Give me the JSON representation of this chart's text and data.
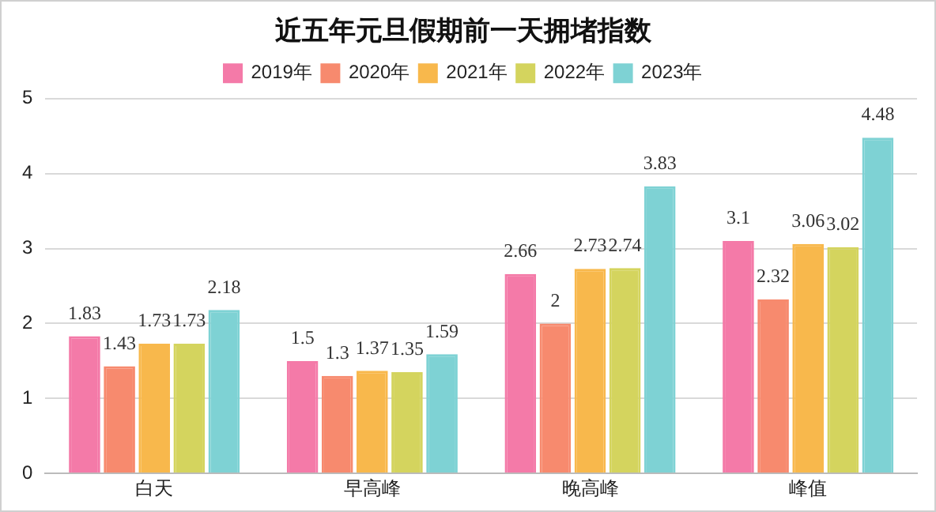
{
  "chart_data": {
    "type": "bar",
    "title": "近五年元旦假期前一天拥堵指数",
    "categories": [
      "白天",
      "早高峰",
      "晚高峰",
      "峰值"
    ],
    "series": [
      {
        "name": "2019年",
        "color": "#f47aa8",
        "values": [
          1.83,
          1.5,
          2.66,
          3.1
        ]
      },
      {
        "name": "2020年",
        "color": "#f78a6e",
        "values": [
          1.43,
          1.3,
          2,
          2.32
        ]
      },
      {
        "name": "2021年",
        "color": "#f8b84c",
        "values": [
          1.73,
          1.37,
          2.73,
          3.06
        ]
      },
      {
        "name": "2022年",
        "color": "#d4d45e",
        "values": [
          1.73,
          1.35,
          2.74,
          3.02
        ]
      },
      {
        "name": "2023年",
        "color": "#7ed2d4",
        "values": [
          2.18,
          1.59,
          3.83,
          4.48
        ]
      }
    ],
    "ylim": [
      0,
      5
    ],
    "yticks": [
      0,
      1,
      2,
      3,
      4,
      5
    ],
    "grid": "y",
    "legend": "top",
    "data_labels": true
  }
}
